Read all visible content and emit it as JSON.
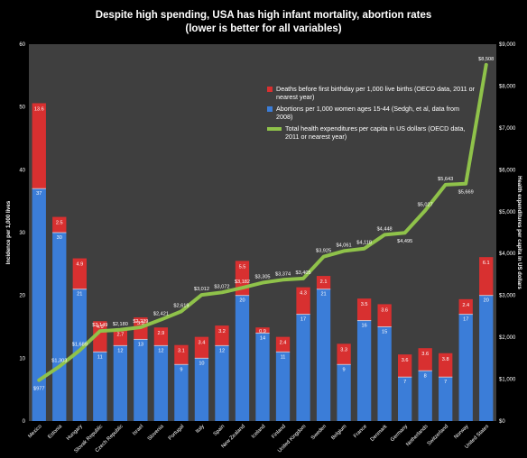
{
  "title_line1": "Despite high spending, USA has high infant mortality, abortion rates",
  "title_line2": "(lower is better for all variables)",
  "left_axis_label": "Incidence per 1,000 lives",
  "right_axis_label": "Health expenditures per capita in US dollars",
  "legend": {
    "deaths": "Deaths before first birthday per 1,000 live births (OECD data, 2011 or nearest year)",
    "abortions": "Abortions per 1,000 women ages 15-44 (Sedgh, et al, data from 2008)",
    "spending": "Total health expenditures per capita in US dollars (OECD data, 2011 or nearest year)"
  },
  "colors": {
    "background": "#000000",
    "plot_bg": "#3f3f3f",
    "abortions": "#3b7dd8",
    "deaths": "#d83030",
    "spending": "#8fc24a",
    "text": "#ffffff"
  },
  "chart_data": {
    "type": "bar",
    "stacked": true,
    "categories": [
      "Mexico",
      "Estonia",
      "Hungary",
      "Slovak Republic",
      "Czech Republic",
      "Israel",
      "Slovenia",
      "Portugal",
      "Italy",
      "Spain",
      "New Zealand",
      "Iceland",
      "Finland",
      "United Kingdom",
      "Sweden",
      "Belgium",
      "France",
      "Denmark",
      "Germany",
      "Netherlands",
      "Switzerland",
      "Norway",
      "United States"
    ],
    "series": [
      {
        "name": "Abortions per 1,000 women ages 15-44 (Sedgh, et al, data from 2008)",
        "axis": "left",
        "values": [
          37,
          30,
          21,
          11,
          12,
          13,
          12,
          9,
          10,
          12,
          20,
          14,
          11,
          17,
          21,
          9,
          16,
          15,
          7,
          8,
          7,
          17,
          20
        ],
        "labels": [
          "37",
          "30",
          "21",
          "11",
          "12",
          "13",
          "12",
          "9",
          "10",
          "12",
          "20",
          "14",
          "11",
          "17",
          "21",
          "9",
          "16",
          "15",
          "7",
          "8",
          "7",
          "17",
          "20"
        ]
      },
      {
        "name": "Deaths before first birthday per 1,000 live births (OECD data, 2011 or nearest year)",
        "axis": "left",
        "values": [
          13.6,
          2.5,
          4.9,
          4.9,
          2.7,
          3.5,
          2.9,
          3.1,
          3.4,
          3.2,
          5.5,
          0.9,
          2.4,
          4.3,
          2.1,
          3.3,
          3.5,
          3.6,
          3.6,
          3.6,
          3.8,
          2.4,
          6.1
        ],
        "labels": [
          "13.6",
          "2.5",
          "4.9",
          "4.9",
          "2.7",
          "3.5",
          "2.9",
          "3.1",
          "3.4",
          "3.2",
          "5.5",
          "0.9",
          "2.4",
          "4.3",
          "2.1",
          "3.3",
          "3.5",
          "3.6",
          "3.6",
          "3.6",
          "3.8",
          "2.4",
          "6.1"
        ]
      },
      {
        "name": "Total health expenditures per capita in US dollars (OECD data, 2011 or nearest year)",
        "type": "line",
        "axis": "right",
        "values": [
          977,
          1303,
          1689,
          2149,
          2180,
          2239,
          2421,
          2619,
          3012,
          3072,
          3182,
          3305,
          3374,
          3405,
          3925,
          4061,
          4118,
          4448,
          4495,
          5027,
          5643,
          5669,
          8508
        ],
        "labels": [
          "$977",
          "$1,303",
          "$1,689",
          "$2,149",
          "$2,180",
          "$2,239",
          "$2,421",
          "$2,619",
          "$3,012",
          "$3,072",
          "$3,182",
          "$3,305",
          "$3,374",
          "$3,405",
          "$3,925",
          "$4,061",
          "$4,118",
          "$4,448",
          "$4,495",
          "$5,027",
          "$5,643",
          "$5,669",
          "$8,508"
        ]
      }
    ],
    "left_ticks": [
      "0",
      "10",
      "20",
      "30",
      "40",
      "50",
      "60"
    ],
    "right_ticks": [
      "$0",
      "$1,000",
      "$2,000",
      "$3,000",
      "$4,000",
      "$5,000",
      "$6,000",
      "$7,000",
      "$8,000",
      "$9,000"
    ],
    "ylim_left": [
      0,
      60
    ],
    "ylim_right": [
      0,
      9000
    ],
    "legend_position": "top-right-inside",
    "grid": false
  }
}
